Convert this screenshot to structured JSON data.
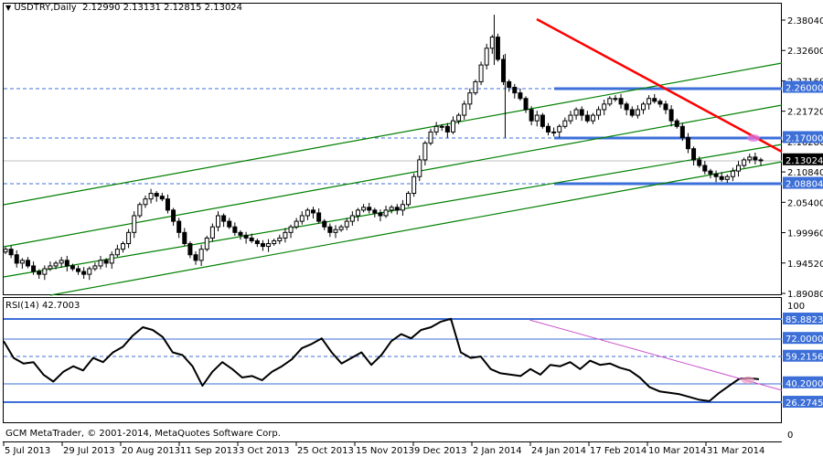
{
  "header": {
    "symbol_label": "USDTRY,Daily",
    "ohlc": "2.12990 2.13131 2.12815 2.13024",
    "collapse_icon": "triangle-down-icon"
  },
  "rsi_header": {
    "label": "RSI(14) 42.7003"
  },
  "footer": {
    "copyright": "GCM MetaTrader, © 2001-2014, MetaQuotes Software Corp."
  },
  "colors": {
    "background": "#ffffff",
    "frame": "#000000",
    "candle": "#000000",
    "horizontal_level": "#3c6fd8",
    "channel": "#008000",
    "resistance_trend": "#ff0000",
    "rsi_trend": "#cc55cc",
    "current_price_line": "#c0c0c0",
    "current_price_tag": "#000000"
  },
  "price_axis": {
    "ticks": [
      "2.38040",
      "2.32600",
      "2.27160",
      "2.21720",
      "2.16280",
      "2.10840",
      "2.05400",
      "1.99960",
      "1.94520",
      "1.89080"
    ],
    "tags": [
      {
        "label": "2.26000",
        "value": 2.26,
        "bg": "#3c6fd8"
      },
      {
        "label": "2.17000",
        "value": 2.17,
        "bg": "#3c6fd8"
      },
      {
        "label": "2.13024",
        "value": 2.13024,
        "bg": "#000000"
      },
      {
        "label": "2.08804",
        "value": 2.08804,
        "bg": "#3c6fd8"
      }
    ]
  },
  "rsi_axis": {
    "top": "100",
    "bottom": "0",
    "tags": [
      {
        "label": "85.88235",
        "value": 85.88235
      },
      {
        "label": "72.00000",
        "value": 72.0
      },
      {
        "label": "59.21569",
        "value": 59.21569
      },
      {
        "label": "40.20000",
        "value": 40.2
      },
      {
        "label": "26.27451",
        "value": 26.27451
      }
    ]
  },
  "time_axis": {
    "ticks": [
      "5 Jul 2013",
      "29 Jul 2013",
      "20 Aug 2013",
      "11 Sep 2013",
      "3 Oct 2013",
      "25 Oct 2013",
      "15 Nov 2013",
      "9 Dec 2013",
      "2 Jan 2014",
      "24 Jan 2014",
      "17 Feb 2014",
      "10 Mar 2014",
      "31 Mar 2014"
    ]
  },
  "chart_data": [
    {
      "type": "candlestick",
      "title": "USDTRY,Daily",
      "subtitle": "O 2.12990 H 2.13131 L 2.12815 C 2.13024",
      "xlabel": "",
      "ylabel": "",
      "ylim": [
        1.8908,
        2.3804
      ],
      "x": [
        "5 Jul 2013",
        "29 Jul 2013",
        "20 Aug 2013",
        "11 Sep 2013",
        "3 Oct 2013",
        "25 Oct 2013",
        "15 Nov 2013",
        "9 Dec 2013",
        "2 Jan 2014",
        "24 Jan 2014",
        "17 Feb 2014",
        "10 Mar 2014",
        "31 Mar 2014"
      ],
      "series": [
        {
          "name": "USDTRY close (approx)",
          "values": [
            1.95,
            1.93,
            2.06,
            1.96,
            2.02,
            2.03,
            2.04,
            2.05,
            2.18,
            2.3,
            2.2,
            2.23,
            2.12
          ]
        }
      ],
      "last_price": 2.13024,
      "peak": 2.39,
      "annotations": [
        {
          "type": "hline",
          "value": 2.26,
          "label": "2.26000",
          "style": "solid-right-dashed-left"
        },
        {
          "type": "hline",
          "value": 2.17,
          "label": "2.17000",
          "style": "solid-right-dashed-left"
        },
        {
          "type": "hline",
          "value": 2.08804,
          "label": "2.08804",
          "style": "solid-right-dashed-left"
        },
        {
          "type": "trendline",
          "color": "red",
          "from": "24 Jan 2014 peak ~2.38",
          "to": "right edge ~2.15",
          "description": "descending resistance"
        },
        {
          "type": "parallel_channel",
          "color": "green",
          "lines": 4,
          "direction": "ascending"
        }
      ],
      "grid": false
    },
    {
      "type": "line",
      "title": "RSI(14) 42.7003",
      "ylim": [
        0,
        100
      ],
      "levels": [
        85.88235,
        72.0,
        59.21569,
        40.2,
        26.27451
      ],
      "series": [
        {
          "name": "RSI(14)",
          "values": [
            70,
            58,
            54,
            55,
            46,
            41,
            48,
            52,
            49,
            58,
            55,
            62,
            66,
            74,
            80,
            78,
            73,
            62,
            60,
            52,
            38,
            48,
            55,
            50,
            44,
            45,
            42,
            48,
            52,
            57,
            65,
            68,
            72,
            62,
            54,
            58,
            62,
            53,
            60,
            70,
            75,
            72,
            78,
            80,
            84,
            86,
            62,
            58,
            59,
            50,
            47,
            46,
            45,
            50,
            46,
            53,
            52,
            55,
            50,
            56,
            53,
            54,
            51,
            49,
            44,
            37,
            34,
            33,
            32,
            30,
            28,
            27,
            33,
            38,
            43,
            43.5,
            42.7
          ]
        },
        {
          "name": "RSI trendline",
          "values": [
            86,
            40
          ]
        }
      ]
    }
  ]
}
